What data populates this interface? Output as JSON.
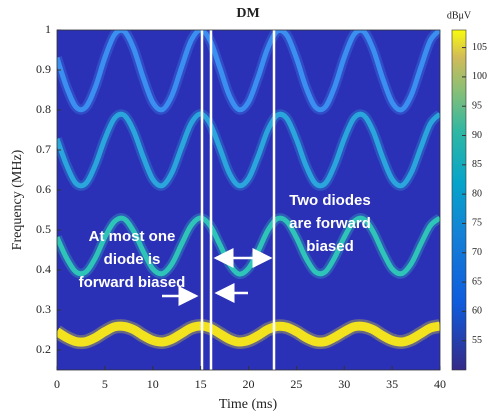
{
  "chart_data": {
    "type": "spectrogram",
    "title": "DM",
    "x_label": "Time (ms)",
    "y_label": "Frequency (MHz)",
    "xlim": [
      0,
      40
    ],
    "xticks": [
      0,
      5,
      10,
      15,
      20,
      25,
      30,
      35,
      40
    ],
    "ylim": [
      0.15,
      1
    ],
    "yticks": [
      0.2,
      0.3,
      0.4,
      0.5,
      0.6,
      0.7,
      0.8,
      0.9,
      1
    ],
    "background": "#2b31b6",
    "x": [
      0,
      1,
      2,
      3,
      4,
      5,
      6,
      7,
      8,
      9,
      10,
      11,
      12,
      13,
      14,
      15,
      16,
      17,
      18,
      19,
      20,
      21,
      22,
      23,
      24,
      25,
      26,
      27,
      28,
      29,
      30,
      31,
      32,
      33,
      34,
      35,
      36,
      37,
      38,
      39,
      40
    ],
    "series": [
      {
        "color": "#f2e31e",
        "values": [
          0.246,
          0.231,
          0.221,
          0.221,
          0.231,
          0.246,
          0.258,
          0.259,
          0.251,
          0.236,
          0.224,
          0.22,
          0.227,
          0.241,
          0.255,
          0.26,
          0.255,
          0.241,
          0.227,
          0.22,
          0.224,
          0.236,
          0.251,
          0.259,
          0.257,
          0.246,
          0.231,
          0.221,
          0.221,
          0.232,
          0.246,
          0.258,
          0.259,
          0.251,
          0.236,
          0.224,
          0.22,
          0.227,
          0.241,
          0.255,
          0.26
        ]
      },
      {
        "color": "#2fc4b8",
        "values": [
          0.482,
          0.43,
          0.395,
          0.395,
          0.43,
          0.482,
          0.521,
          0.528,
          0.497,
          0.447,
          0.403,
          0.391,
          0.415,
          0.464,
          0.511,
          0.53,
          0.511,
          0.464,
          0.415,
          0.39,
          0.404,
          0.447,
          0.498,
          0.528,
          0.521,
          0.481,
          0.43,
          0.395,
          0.395,
          0.431,
          0.482,
          0.521,
          0.528,
          0.497,
          0.446,
          0.403,
          0.391,
          0.416,
          0.465,
          0.511,
          0.53
        ]
      },
      {
        "color": "#2aa6dc",
        "values": [
          0.728,
          0.662,
          0.616,
          0.616,
          0.662,
          0.728,
          0.779,
          0.787,
          0.748,
          0.683,
          0.627,
          0.611,
          0.643,
          0.706,
          0.766,
          0.79,
          0.765,
          0.705,
          0.642,
          0.611,
          0.628,
          0.684,
          0.749,
          0.787,
          0.779,
          0.727,
          0.661,
          0.616,
          0.616,
          0.662,
          0.728,
          0.779,
          0.787,
          0.748,
          0.682,
          0.627,
          0.611,
          0.643,
          0.706,
          0.766,
          0.79
        ]
      },
      {
        "color": "#3b8ff0",
        "values": [
          0.931,
          0.857,
          0.807,
          0.807,
          0.857,
          0.931,
          0.988,
          0.997,
          0.954,
          0.881,
          0.819,
          0.801,
          0.836,
          0.906,
          0.973,
          1.0,
          0.973,
          0.906,
          0.836,
          0.801,
          0.82,
          0.882,
          0.954,
          0.997,
          0.987,
          0.93,
          0.857,
          0.807,
          0.807,
          0.858,
          0.932,
          0.988,
          0.997,
          0.953,
          0.88,
          0.819,
          0.801,
          0.837,
          0.907,
          0.974,
          1.0
        ]
      }
    ],
    "colorbar": {
      "label": "dBμV",
      "lim": [
        50,
        108
      ],
      "ticks": [
        55,
        60,
        65,
        70,
        75,
        80,
        85,
        90,
        95,
        100,
        105
      ]
    },
    "annotations": [
      {
        "lines": [
          "At most one",
          "diode is",
          "forward biased"
        ]
      },
      {
        "lines": [
          "Two diodes",
          "are forward",
          "biased"
        ]
      }
    ]
  }
}
